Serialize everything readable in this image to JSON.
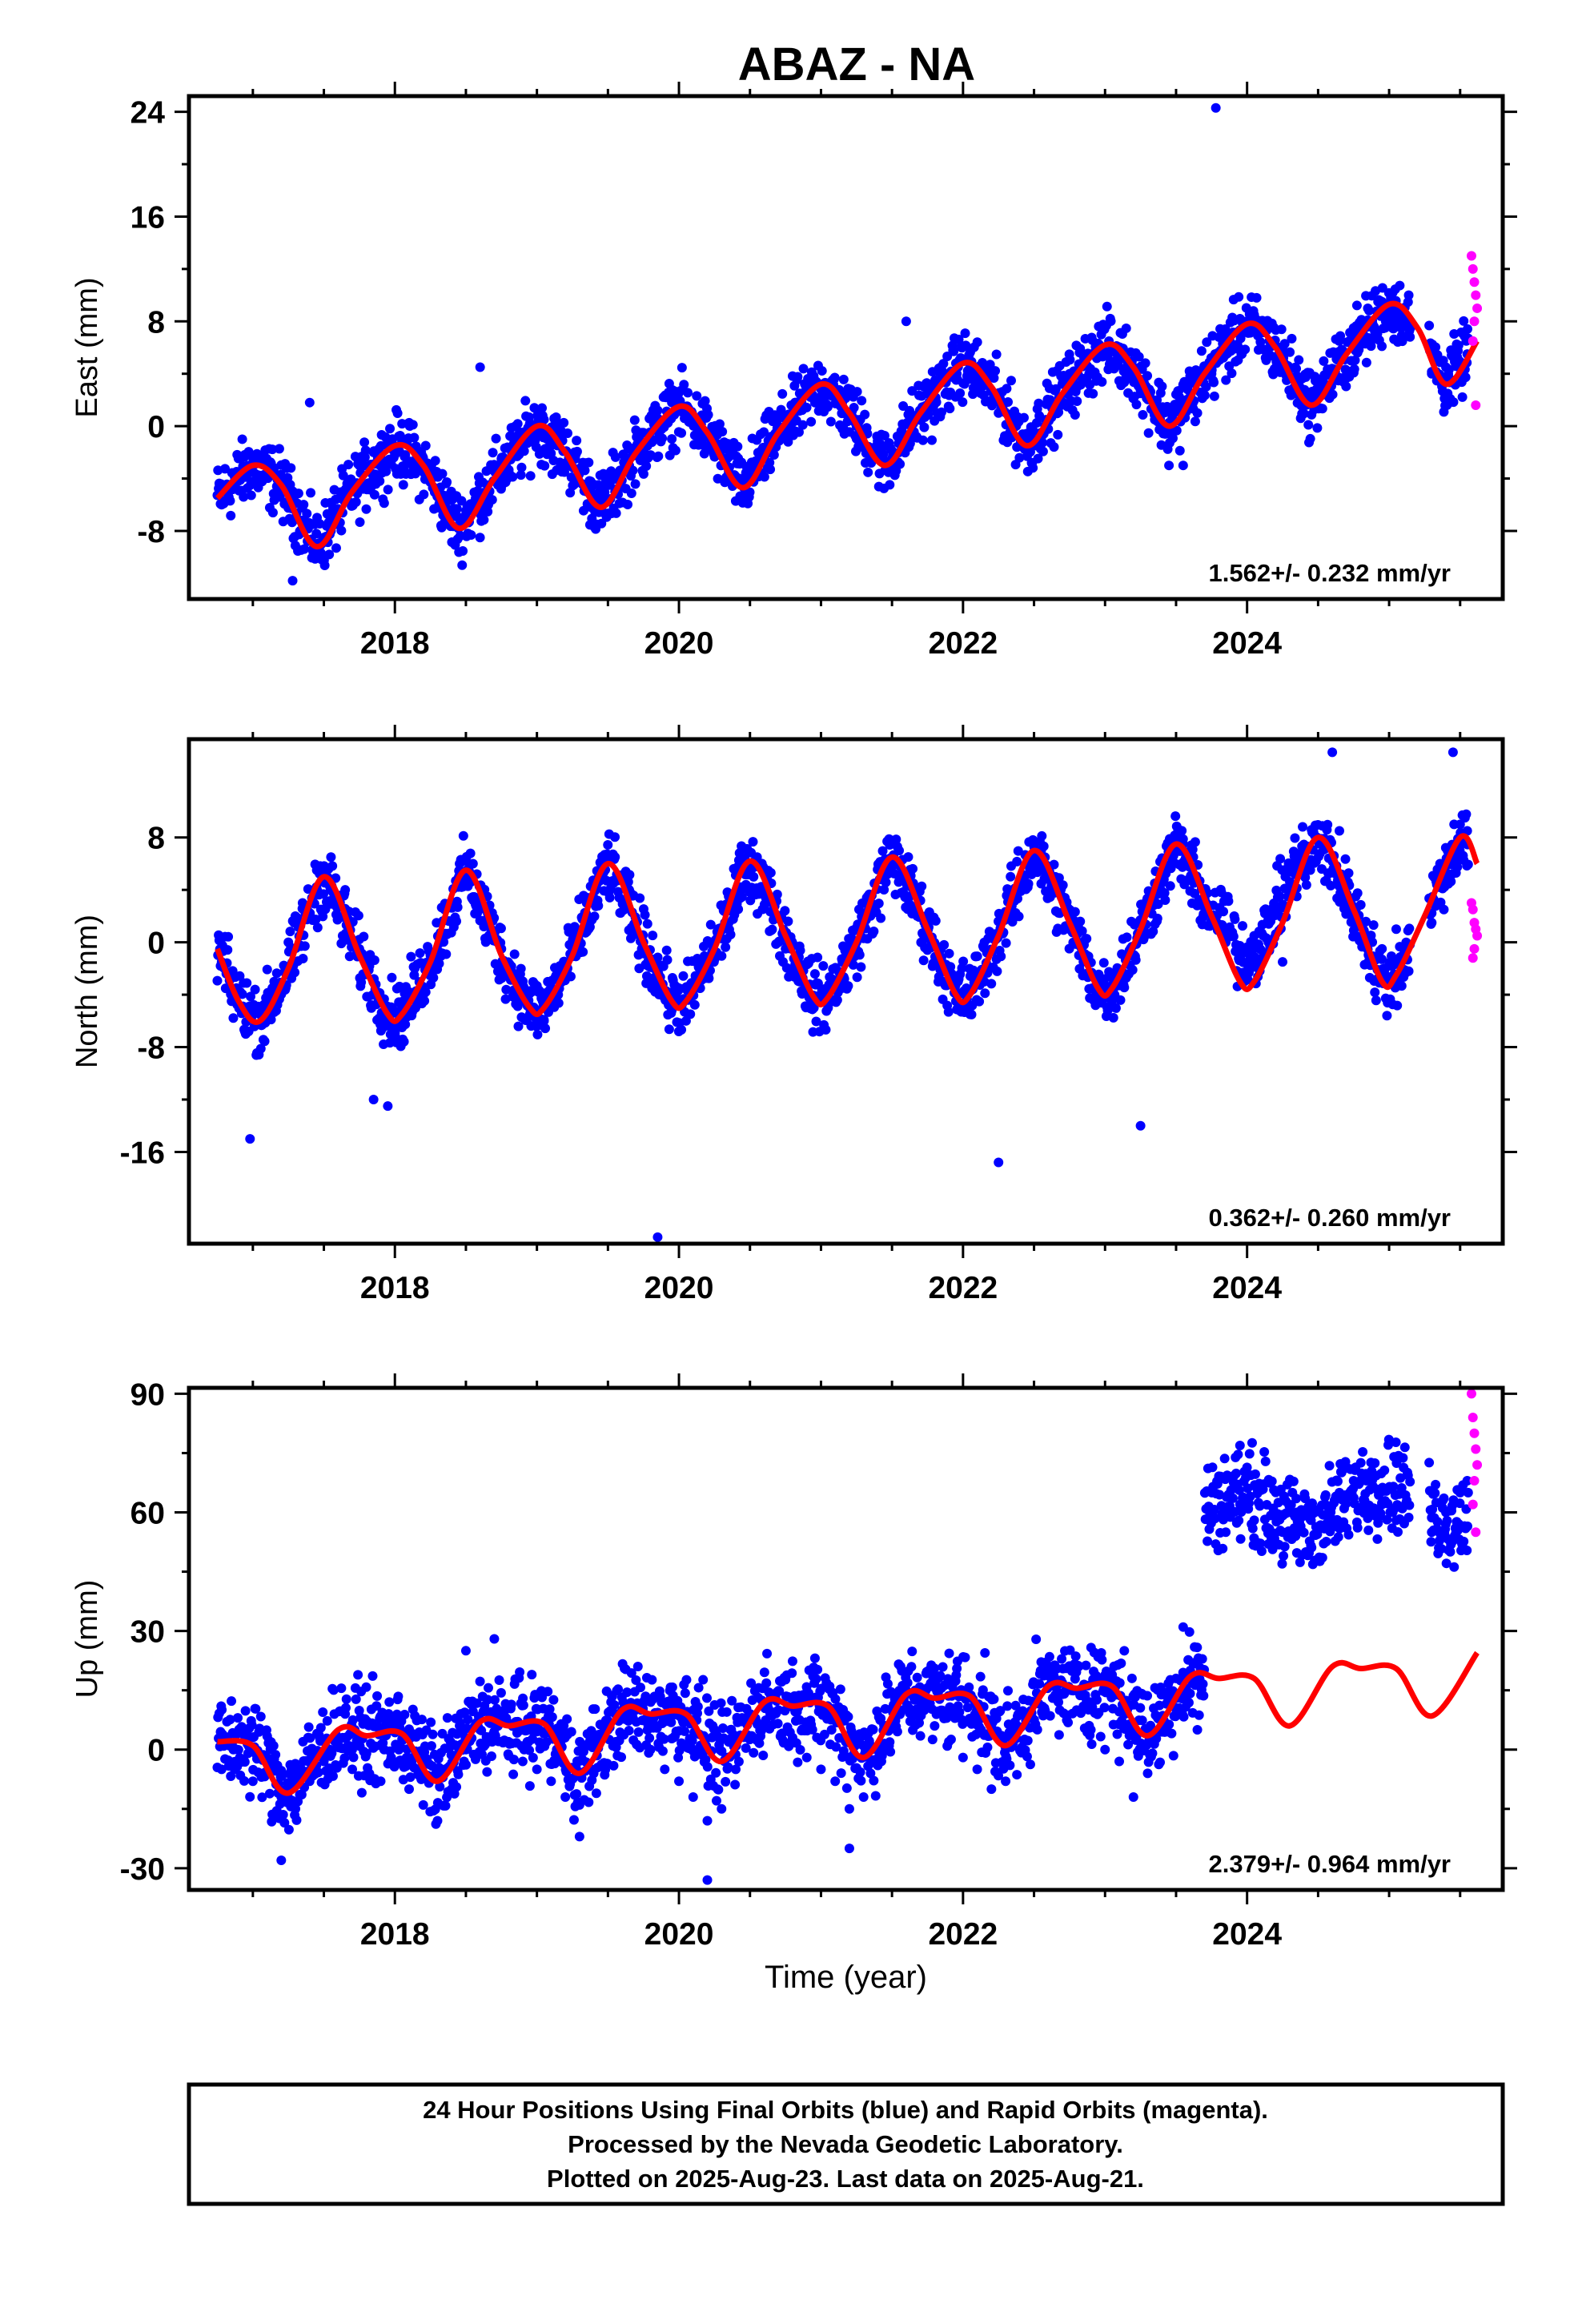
{
  "title": "ABAZ - NA",
  "colors": {
    "final": "#0000ff",
    "rapid": "#ff00ff",
    "model": "#ff0000",
    "frame": "#000000"
  },
  "footer": {
    "line1": "24 Hour Positions Using Final Orbits (blue) and Rapid Orbits (magenta).",
    "line2": "Processed by the Nevada Geodetic Laboratory.",
    "line3": "Plotted on 2025-Aug-23. Last data on 2025-Aug-21."
  },
  "chart_data": [
    {
      "type": "scatter",
      "ylabel": "East (mm)",
      "xlabel": "",
      "xlim": [
        2016.55,
        2025.8
      ],
      "ylim": [
        -13.2,
        25.2
      ],
      "xticks": [
        2018,
        2020,
        2022,
        2024
      ],
      "xtick_labels": [
        "2018",
        "2020",
        "2022",
        "2024"
      ],
      "yticks": [
        24,
        16,
        8,
        0,
        -8
      ],
      "ytick_labels": [
        "24",
        "16",
        "8",
        "0",
        "-8"
      ],
      "rate_label": "1.562+/- 0.232 mm/yr",
      "model": {
        "name": "model",
        "x": [
          2016.75,
          2017.0,
          2017.2,
          2017.45,
          2017.7,
          2018.0,
          2018.2,
          2018.45,
          2018.7,
          2019.0,
          2019.2,
          2019.45,
          2019.7,
          2020.0,
          2020.2,
          2020.45,
          2020.7,
          2021.0,
          2021.2,
          2021.45,
          2021.7,
          2022.0,
          2022.2,
          2022.45,
          2022.7,
          2023.0,
          2023.2,
          2023.45,
          2023.7,
          2024.0,
          2024.2,
          2024.45,
          2024.7,
          2025.0,
          2025.2,
          2025.4,
          2025.62
        ],
        "y": [
          -5.5,
          -3.0,
          -4.5,
          -9.2,
          -5.0,
          -1.5,
          -3.0,
          -7.8,
          -4.0,
          0.0,
          -2.0,
          -6.2,
          -2.0,
          1.5,
          -0.5,
          -4.7,
          -0.5,
          3.2,
          1.0,
          -3.0,
          1.0,
          4.8,
          3.0,
          -1.5,
          2.5,
          6.2,
          4.5,
          0.0,
          4.0,
          7.8,
          6.0,
          1.6,
          5.5,
          9.3,
          7.5,
          3.2,
          6.5
        ]
      },
      "final_points": {
        "name": "final",
        "x": [
          2016.78,
          2016.85,
          2016.95,
          2017.05,
          2017.15,
          2017.25,
          2017.35,
          2017.45,
          2017.55,
          2017.65,
          2017.75,
          2017.85,
          2017.95,
          2018.05,
          2018.15,
          2018.25,
          2018.35,
          2018.45,
          2018.55,
          2018.65,
          2018.75,
          2018.85,
          2018.95,
          2019.05,
          2019.15,
          2019.25,
          2019.35,
          2019.45,
          2019.55,
          2019.65,
          2019.75,
          2019.85,
          2019.95,
          2020.05,
          2020.15,
          2020.25,
          2020.35,
          2020.45,
          2020.55,
          2020.65,
          2020.75,
          2020.85,
          2020.95,
          2021.05,
          2021.15,
          2021.25,
          2021.35,
          2021.45,
          2021.55,
          2021.65,
          2021.75,
          2021.85,
          2021.95,
          2022.05,
          2022.15,
          2022.25,
          2022.35,
          2022.45,
          2022.55,
          2022.65,
          2022.75,
          2022.85,
          2022.95,
          2023.05,
          2023.15,
          2023.25,
          2023.35,
          2023.45,
          2023.55,
          2023.65,
          2023.75,
          2023.85,
          2023.95,
          2024.05,
          2024.15,
          2024.25,
          2024.35,
          2024.45,
          2024.55,
          2024.65,
          2024.75,
          2024.85,
          2024.95,
          2025.05,
          2025.15,
          2025.3,
          2025.4,
          2025.48,
          2025.55,
          2017.28,
          2023.78,
          2017.4,
          2018.6,
          2021.6
        ],
        "y": [
          -6.0,
          -4.5,
          -3.5,
          -2.8,
          -3.2,
          -5.0,
          -7.5,
          -9.0,
          -8.0,
          -5.5,
          -3.0,
          -2.0,
          -1.5,
          -1.2,
          -2.0,
          -3.5,
          -6.0,
          -7.8,
          -6.5,
          -4.5,
          -2.5,
          -0.8,
          0.2,
          0.5,
          -0.8,
          -2.5,
          -5.0,
          -6.0,
          -5.0,
          -3.0,
          -0.5,
          1.2,
          1.8,
          1.5,
          0.3,
          -1.5,
          -3.5,
          -4.5,
          -3.5,
          -1.5,
          0.8,
          2.5,
          3.3,
          3.0,
          1.8,
          0.0,
          -2.0,
          -2.8,
          -2.0,
          0.2,
          2.5,
          4.0,
          4.8,
          4.5,
          3.2,
          1.0,
          -0.8,
          -1.5,
          -0.5,
          1.5,
          4.0,
          5.5,
          6.2,
          5.8,
          4.5,
          2.5,
          0.5,
          -3.0,
          -3.0,
          1.0,
          4.0,
          6.5,
          8.2,
          8.5,
          7.5,
          5.0,
          3.0,
          2.0,
          2.8,
          5.0,
          7.5,
          9.0,
          9.5,
          9.0,
          7.5,
          4.0,
          4.5,
          6.0,
          5.5,
          -11.8,
          24.3,
          1.8,
          4.5,
          8.0
        ]
      },
      "rapid_points": {
        "name": "rapid",
        "x": [
          2025.58,
          2025.59,
          2025.6,
          2025.61,
          2025.62,
          2025.6,
          2025.59,
          2025.61
        ],
        "y": [
          13.0,
          12.0,
          11.0,
          10.0,
          9.0,
          8.0,
          6.5,
          1.6
        ]
      }
    },
    {
      "type": "scatter",
      "ylabel": "North (mm)",
      "xlabel": "",
      "xlim": [
        2016.55,
        2025.8
      ],
      "ylim": [
        -23.0,
        15.5
      ],
      "xticks": [
        2018,
        2020,
        2022,
        2024
      ],
      "xtick_labels": [
        "2018",
        "2020",
        "2022",
        "2024"
      ],
      "yticks": [
        8,
        0,
        -8,
        -16
      ],
      "ytick_labels": [
        "8",
        "0",
        "-8",
        "-16"
      ],
      "rate_label": "0.362+/- 0.260 mm/yr",
      "model": {
        "name": "model",
        "x": [
          2016.75,
          2016.9,
          2017.05,
          2017.25,
          2017.5,
          2017.75,
          2017.95,
          2018.05,
          2018.25,
          2018.5,
          2018.75,
          2018.95,
          2019.05,
          2019.25,
          2019.5,
          2019.75,
          2019.95,
          2020.05,
          2020.25,
          2020.5,
          2020.75,
          2020.95,
          2021.05,
          2021.25,
          2021.5,
          2021.75,
          2021.95,
          2022.05,
          2022.25,
          2022.5,
          2022.75,
          2022.95,
          2023.05,
          2023.25,
          2023.5,
          2023.75,
          2023.95,
          2024.05,
          2024.25,
          2024.5,
          2024.75,
          2024.95,
          2025.05,
          2025.25,
          2025.5,
          2025.62
        ],
        "y": [
          -0.5,
          -4.5,
          -6.0,
          -2.0,
          5.0,
          -1.0,
          -5.5,
          -5.5,
          -1.5,
          5.5,
          -1.0,
          -5.0,
          -5.0,
          -1.0,
          6.0,
          0.0,
          -4.5,
          -4.5,
          -0.5,
          6.2,
          0.5,
          -4.2,
          -4.2,
          0.0,
          6.5,
          1.0,
          -4.0,
          -4.0,
          0.5,
          7.0,
          1.5,
          -3.5,
          -3.5,
          1.0,
          7.5,
          2.0,
          -3.0,
          -3.0,
          1.5,
          8.0,
          2.5,
          -3.0,
          -2.5,
          2.0,
          8.0,
          6.0
        ]
      },
      "final_points": {
        "name": "final",
        "x": [
          2016.78,
          2016.85,
          2016.95,
          2017.05,
          2017.15,
          2017.25,
          2017.35,
          2017.45,
          2017.55,
          2017.65,
          2017.75,
          2017.85,
          2017.95,
          2018.05,
          2018.15,
          2018.25,
          2018.35,
          2018.45,
          2018.55,
          2018.65,
          2018.75,
          2018.85,
          2018.95,
          2019.05,
          2019.15,
          2019.25,
          2019.35,
          2019.45,
          2019.55,
          2019.65,
          2019.75,
          2019.85,
          2019.95,
          2020.05,
          2020.15,
          2020.25,
          2020.35,
          2020.45,
          2020.55,
          2020.65,
          2020.75,
          2020.85,
          2020.95,
          2021.05,
          2021.15,
          2021.25,
          2021.35,
          2021.45,
          2021.55,
          2021.65,
          2021.75,
          2021.85,
          2021.95,
          2022.05,
          2022.15,
          2022.25,
          2022.35,
          2022.45,
          2022.55,
          2022.65,
          2022.75,
          2022.85,
          2022.95,
          2023.05,
          2023.15,
          2023.25,
          2023.35,
          2023.45,
          2023.55,
          2023.65,
          2023.75,
          2023.85,
          2023.95,
          2024.05,
          2024.15,
          2024.25,
          2024.35,
          2024.45,
          2024.55,
          2024.65,
          2024.75,
          2024.85,
          2024.95,
          2025.05,
          2025.3,
          2025.4,
          2025.5,
          2025.55,
          2016.98,
          2017.85,
          2017.95,
          2019.85,
          2022.25,
          2023.25,
          2024.6,
          2025.45
        ],
        "y": [
          -1.5,
          -4.5,
          -7.0,
          -5.5,
          -3.0,
          0.0,
          3.0,
          5.5,
          6.5,
          4.0,
          -0.5,
          -4.0,
          -6.0,
          -6.5,
          -4.5,
          -1.0,
          2.5,
          5.0,
          6.0,
          3.5,
          -0.5,
          -4.0,
          -5.5,
          -6.0,
          -4.0,
          -0.5,
          3.0,
          5.5,
          6.5,
          4.0,
          0.0,
          -3.5,
          -5.0,
          -6.0,
          -3.5,
          0.0,
          3.5,
          6.0,
          6.5,
          4.5,
          0.5,
          -3.0,
          -5.0,
          -5.0,
          -3.5,
          0.0,
          3.5,
          6.0,
          7.0,
          4.5,
          1.0,
          -3.0,
          -4.5,
          -5.5,
          -3.0,
          0.5,
          4.0,
          6.5,
          7.0,
          5.0,
          1.0,
          -2.5,
          -4.0,
          -4.5,
          -2.5,
          1.5,
          4.5,
          7.5,
          7.5,
          3.0,
          1.5,
          0.0,
          -1.0,
          0.5,
          0.0,
          -1.5,
          3.5,
          6.0,
          7.5,
          8.5,
          2.0,
          0.5,
          -0.5,
          1.0,
          1.5,
          5.0,
          9.0,
          8.5,
          -15.0,
          -12.0,
          -12.5,
          -22.5,
          -16.8,
          -14.0,
          14.5,
          14.5
        ]
      },
      "rapid_points": {
        "name": "rapid",
        "x": [
          2025.58,
          2025.59,
          2025.6,
          2025.61,
          2025.62,
          2025.6,
          2025.59
        ],
        "y": [
          3.0,
          2.5,
          1.5,
          1.0,
          0.5,
          -0.5,
          -1.2
        ]
      }
    },
    {
      "type": "scatter",
      "ylabel": "Up (mm)",
      "xlabel": "Time (year)",
      "xlim": [
        2016.55,
        2025.8
      ],
      "ylim": [
        -35.5,
        91.5
      ],
      "xticks": [
        2018,
        2020,
        2022,
        2024
      ],
      "xtick_labels": [
        "2018",
        "2020",
        "2022",
        "2024"
      ],
      "yticks": [
        90,
        60,
        30,
        0,
        -30
      ],
      "ytick_labels": [
        "90",
        "60",
        "30",
        "0",
        "-30"
      ],
      "rate_label": "2.379+/- 0.964 mm/yr",
      "model": {
        "name": "model",
        "x": [
          2016.75,
          2017.0,
          2017.25,
          2017.6,
          2017.8,
          2018.05,
          2018.3,
          2018.6,
          2018.8,
          2019.05,
          2019.3,
          2019.6,
          2019.8,
          2020.05,
          2020.3,
          2020.6,
          2020.8,
          2021.05,
          2021.3,
          2021.6,
          2021.8,
          2022.05,
          2022.3,
          2022.6,
          2022.8,
          2023.05,
          2023.3,
          2023.6,
          2023.8,
          2024.05,
          2024.3,
          2024.6,
          2024.8,
          2025.05,
          2025.3,
          2025.62
        ],
        "y": [
          2.0,
          1.0,
          -11.0,
          5.0,
          3.5,
          4.0,
          -8.0,
          7.0,
          6.0,
          6.5,
          -6.0,
          10.0,
          9.0,
          9.0,
          -3.0,
          12.0,
          11.0,
          11.0,
          -2.0,
          14.0,
          13.0,
          13.5,
          1.0,
          16.0,
          15.5,
          16.0,
          3.5,
          18.5,
          18.0,
          18.0,
          6.0,
          21.0,
          20.5,
          20.5,
          8.5,
          24.5
        ]
      },
      "final_points": {
        "name": "final",
        "x": [
          2016.78,
          2016.9,
          2017.0,
          2017.1,
          2017.2,
          2017.3,
          2017.4,
          2017.5,
          2017.6,
          2017.7,
          2017.8,
          2017.9,
          2018.0,
          2018.1,
          2018.2,
          2018.3,
          2018.4,
          2018.5,
          2018.6,
          2018.7,
          2018.8,
          2018.9,
          2019.0,
          2019.1,
          2019.2,
          2019.3,
          2019.4,
          2019.5,
          2019.6,
          2019.7,
          2019.8,
          2019.9,
          2020.0,
          2020.1,
          2020.2,
          2020.3,
          2020.4,
          2020.5,
          2020.6,
          2020.7,
          2020.8,
          2020.9,
          2021.0,
          2021.1,
          2021.2,
          2021.3,
          2021.4,
          2021.5,
          2021.6,
          2021.7,
          2021.8,
          2021.9,
          2022.0,
          2022.1,
          2022.2,
          2022.3,
          2022.4,
          2022.5,
          2022.6,
          2022.7,
          2022.8,
          2022.9,
          2023.0,
          2023.1,
          2023.2,
          2023.3,
          2023.4,
          2023.5,
          2023.6,
          2023.65,
          2023.75,
          2023.85,
          2023.95,
          2024.05,
          2024.15,
          2024.25,
          2024.35,
          2024.45,
          2024.55,
          2024.65,
          2024.75,
          2024.85,
          2024.95,
          2025.05,
          2025.3,
          2025.4,
          2025.5,
          2025.55,
          2017.2,
          2018.5,
          2019.3,
          2020.2,
          2021.2,
          2018.7,
          2023.55
        ],
        "y": [
          -5.0,
          -3.0,
          -8.0,
          -2.0,
          -12.0,
          -15.0,
          -8.0,
          -3.0,
          2.0,
          -5.0,
          -1.0,
          -8.0,
          -4.0,
          -10.0,
          -14.0,
          -18.0,
          -10.0,
          0.0,
          5.0,
          8.0,
          2.0,
          -3.0,
          -5.0,
          -8.0,
          -12.0,
          -14.0,
          -6.0,
          5.0,
          10.0,
          7.0,
          0.0,
          -5.0,
          -8.0,
          -12.0,
          -18.0,
          -15.0,
          -5.0,
          8.0,
          12.0,
          10.0,
          3.0,
          -2.0,
          -5.0,
          -8.0,
          -15.0,
          -12.0,
          -4.0,
          10.0,
          15.0,
          12.0,
          6.0,
          2.0,
          -2.0,
          -5.0,
          -10.0,
          -8.0,
          0.0,
          12.0,
          16.0,
          14.0,
          10.0,
          5.0,
          0.0,
          -3.0,
          -12.0,
          -6.0,
          5.0,
          18.0,
          20.0,
          5.0,
          60.0,
          55.0,
          62.0,
          58.0,
          52.0,
          55.0,
          60.0,
          58.0,
          62.0,
          65.0,
          68.0,
          60.0,
          62.0,
          58.0,
          55.0,
          60.0,
          65.0,
          68.0,
          -28.0,
          25.0,
          -22.0,
          -33.0,
          -25.0,
          28.0,
          31.0
        ]
      },
      "rapid_points": {
        "name": "rapid",
        "x": [
          2025.58,
          2025.59,
          2025.6,
          2025.61,
          2025.62,
          2025.6,
          2025.59,
          2025.61
        ],
        "y": [
          90.0,
          84.0,
          80.0,
          76.0,
          72.0,
          68.0,
          62.0,
          55.0
        ]
      }
    }
  ]
}
